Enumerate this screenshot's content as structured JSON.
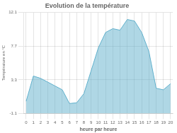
{
  "chart_data": {
    "type": "area",
    "title": "Evolution de la température",
    "xlabel": "heure par heure",
    "ylabel": "Température en °C",
    "x": [
      0,
      1,
      2,
      3,
      4,
      5,
      6,
      7,
      8,
      9,
      10,
      11,
      12,
      13,
      14,
      15,
      16,
      17,
      18,
      19,
      20
    ],
    "values": [
      0.5,
      3.8,
      3.5,
      3.0,
      2.5,
      2.0,
      0.2,
      0.3,
      1.5,
      4.5,
      7.5,
      9.5,
      10.0,
      9.8,
      11.2,
      11.0,
      9.5,
      7.0,
      2.2,
      2.0,
      2.8
    ],
    "color": "#60b0cc",
    "xlim": [
      -0.3,
      20.3
    ],
    "xticks": [
      0,
      1,
      2,
      3,
      4,
      5,
      6,
      7,
      8,
      9,
      10,
      11,
      12,
      13,
      14,
      15,
      16,
      17,
      18,
      19,
      20
    ],
    "ylim": [
      -1.1,
      12.1
    ],
    "yticks": [
      -1.1,
      3.3,
      7.7,
      12.1
    ],
    "grid": true
  }
}
